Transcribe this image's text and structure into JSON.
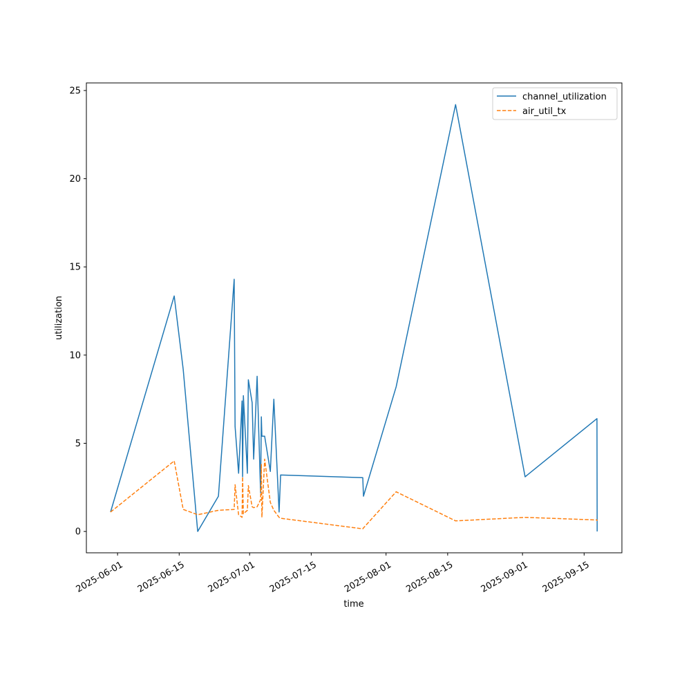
{
  "chart_data": {
    "type": "line",
    "title": "",
    "xlabel": "time",
    "ylabel": "utilization",
    "xlim": [
      "2025-05-24T22:00",
      "2025-09-23T14:00"
    ],
    "ylim": [
      -1.21,
      25.43
    ],
    "grid": false,
    "legend_position": "top-right",
    "x_ticks": [
      "2025-06-01",
      "2025-06-15",
      "2025-07-01",
      "2025-07-15",
      "2025-08-01",
      "2025-08-15",
      "2025-09-01",
      "2025-09-15"
    ],
    "y_ticks": [
      0,
      5,
      10,
      15,
      20,
      25
    ],
    "x": [
      "2025-05-30T10:00",
      "2025-06-13T21:00",
      "2025-06-15T22:00",
      "2025-06-19T05:00",
      "2025-06-23T22:00",
      "2025-06-27T12:00",
      "2025-06-27T17:00",
      "2025-06-28T12:00",
      "2025-06-29T07:00",
      "2025-06-29T10:00",
      "2025-06-29T14:00",
      "2025-06-30T12:00",
      "2025-06-30T17:00",
      "2025-07-01T14:00",
      "2025-07-01T22:00",
      "2025-07-02T17:00",
      "2025-07-03T12:00",
      "2025-07-03T16:00",
      "2025-07-03T19:00",
      "2025-07-04T10:00",
      "2025-07-05T17:00",
      "2025-07-06T12:00",
      "2025-07-07T17:00",
      "2025-07-08T01:00",
      "2025-07-26T17:00",
      "2025-07-26T21:00",
      "2025-08-03T07:00",
      "2025-08-16T19:00",
      "2025-09-01T14:00",
      "2025-09-17T22:00",
      "2025-09-17T23:00"
    ],
    "series": [
      {
        "name": "channel_utilization",
        "color": "#1f77b4",
        "style": "solid",
        "values": [
          1.1,
          13.35,
          9.2,
          0,
          2.0,
          14.3,
          5.95,
          3.3,
          7.4,
          3.1,
          7.7,
          3.3,
          8.6,
          7.3,
          4.1,
          8.8,
          2.2,
          6.5,
          5.4,
          5.4,
          3.4,
          7.5,
          1.1,
          3.2,
          3.05,
          2.0,
          8.2,
          24.2,
          3.1,
          6.4,
          0
        ]
      },
      {
        "name": "air_util_tx",
        "color": "#ff7f0e",
        "style": "dashed",
        "values": [
          1.1,
          4.0,
          1.25,
          0.95,
          1.2,
          1.25,
          2.65,
          0.95,
          0.8,
          3.1,
          1.0,
          1.2,
          2.6,
          1.4,
          1.35,
          1.4,
          1.8,
          3.8,
          0.8,
          4.1,
          1.65,
          1.2,
          0.8,
          0.75,
          0.15,
          0.2,
          2.25,
          0.6,
          0.8,
          0.65,
          0.6
        ]
      }
    ]
  }
}
